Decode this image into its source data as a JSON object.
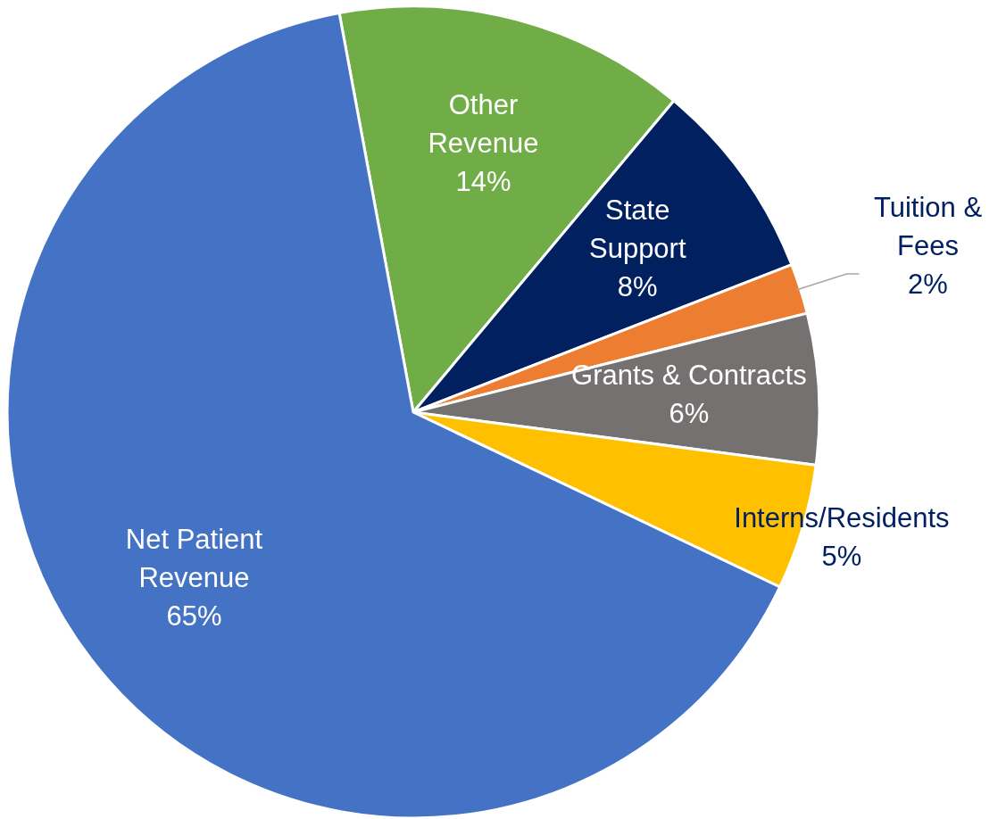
{
  "chart_data": {
    "type": "pie",
    "categories": [
      "Other Revenue",
      "State Support",
      "Tuition & Fees",
      "Grants & Contracts",
      "Interns/Residents",
      "Net Patient Revenue"
    ],
    "values": [
      14,
      8,
      2,
      6,
      5,
      65
    ],
    "value_labels": [
      "14%",
      "8%",
      "2%",
      "6%",
      "5%",
      "65%"
    ],
    "colors": [
      "#70ad47",
      "#002060",
      "#ed7d31",
      "#767171",
      "#ffc000",
      "#4472c4"
    ]
  }
}
